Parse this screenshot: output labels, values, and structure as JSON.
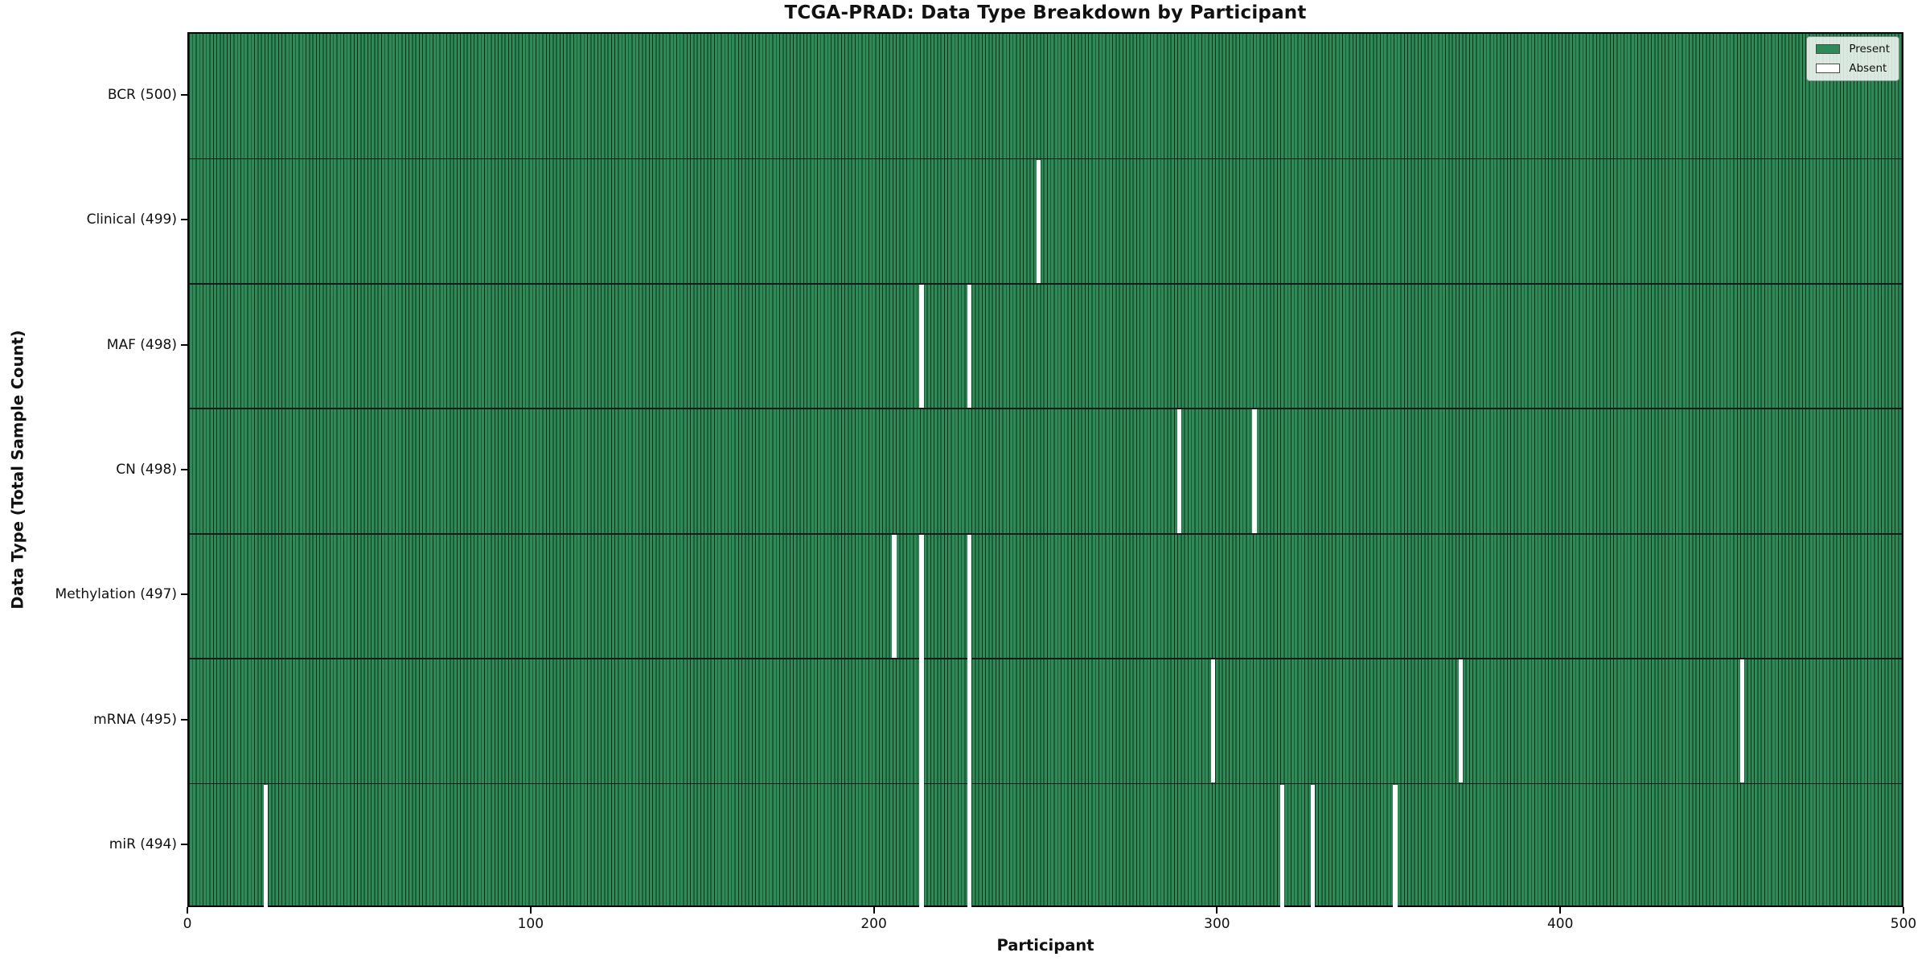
{
  "chart_data": {
    "type": "heatmap",
    "title": "TCGA-PRAD: Data Type Breakdown by Participant",
    "xlabel": "Participant",
    "ylabel": "Data Type (Total Sample Count)",
    "xlim": [
      0,
      500
    ],
    "x_ticks": [
      0,
      100,
      200,
      300,
      400,
      500
    ],
    "n_participants": 500,
    "grid": false,
    "legend": {
      "position": "upper right",
      "entries": [
        {
          "label": "Present",
          "color": "#2e8b57"
        },
        {
          "label": "Absent",
          "color": "#ffffff"
        }
      ]
    },
    "rows": [
      {
        "label": "BCR (500)",
        "data_type": "BCR",
        "total": 500,
        "absent_participants": []
      },
      {
        "label": "Clinical (499)",
        "data_type": "Clinical",
        "total": 499,
        "absent_participants": [
          247
        ]
      },
      {
        "label": "MAF (498)",
        "data_type": "MAF",
        "total": 498,
        "absent_participants": [
          213,
          227
        ]
      },
      {
        "label": "CN (498)",
        "data_type": "CN",
        "total": 498,
        "absent_participants": [
          288,
          310
        ]
      },
      {
        "label": "Methylation (497)",
        "data_type": "Methylation",
        "total": 497,
        "absent_participants": [
          205,
          213,
          227
        ]
      },
      {
        "label": "mRNA (495)",
        "data_type": "mRNA",
        "total": 495,
        "absent_participants": [
          213,
          227,
          298,
          370,
          452
        ]
      },
      {
        "label": "miR (494)",
        "data_type": "miR",
        "total": 494,
        "absent_participants": [
          22,
          213,
          227,
          318,
          327,
          351
        ]
      }
    ],
    "colors": {
      "present": "#2e8b57",
      "absent": "#ffffff",
      "bar_edge": "#0c2d1b",
      "row_divider": "#1a1a1a",
      "plot_border": "#000000"
    }
  }
}
